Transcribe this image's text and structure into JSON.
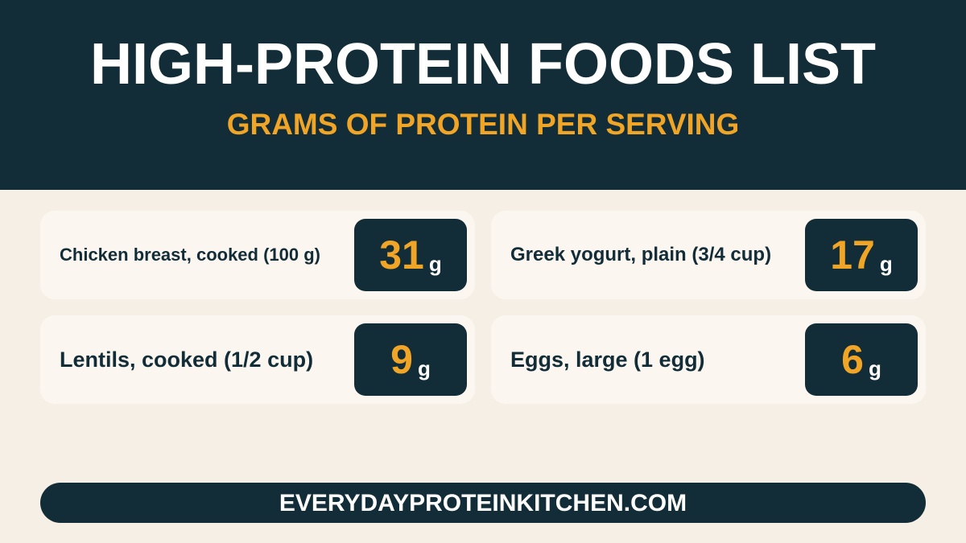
{
  "header": {
    "title": "HIGH-PROTEIN FOODS LIST",
    "subtitle": "GRAMS OF PROTEIN PER SERVING"
  },
  "items": [
    {
      "label": "Chicken breast, cooked (100 g)",
      "value": 31,
      "unit": "g"
    },
    {
      "label": "Greek yogurt, plain (3/4 cup)",
      "value": 17,
      "unit": "g"
    },
    {
      "label": "Lentils, cooked (1/2 cup)",
      "value": 9,
      "unit": "g"
    },
    {
      "label": "Eggs, large (1 egg)",
      "value": 6,
      "unit": "g"
    }
  ],
  "footer": {
    "url": "EVERYDAYPROTEINKITCHEN.COM"
  }
}
